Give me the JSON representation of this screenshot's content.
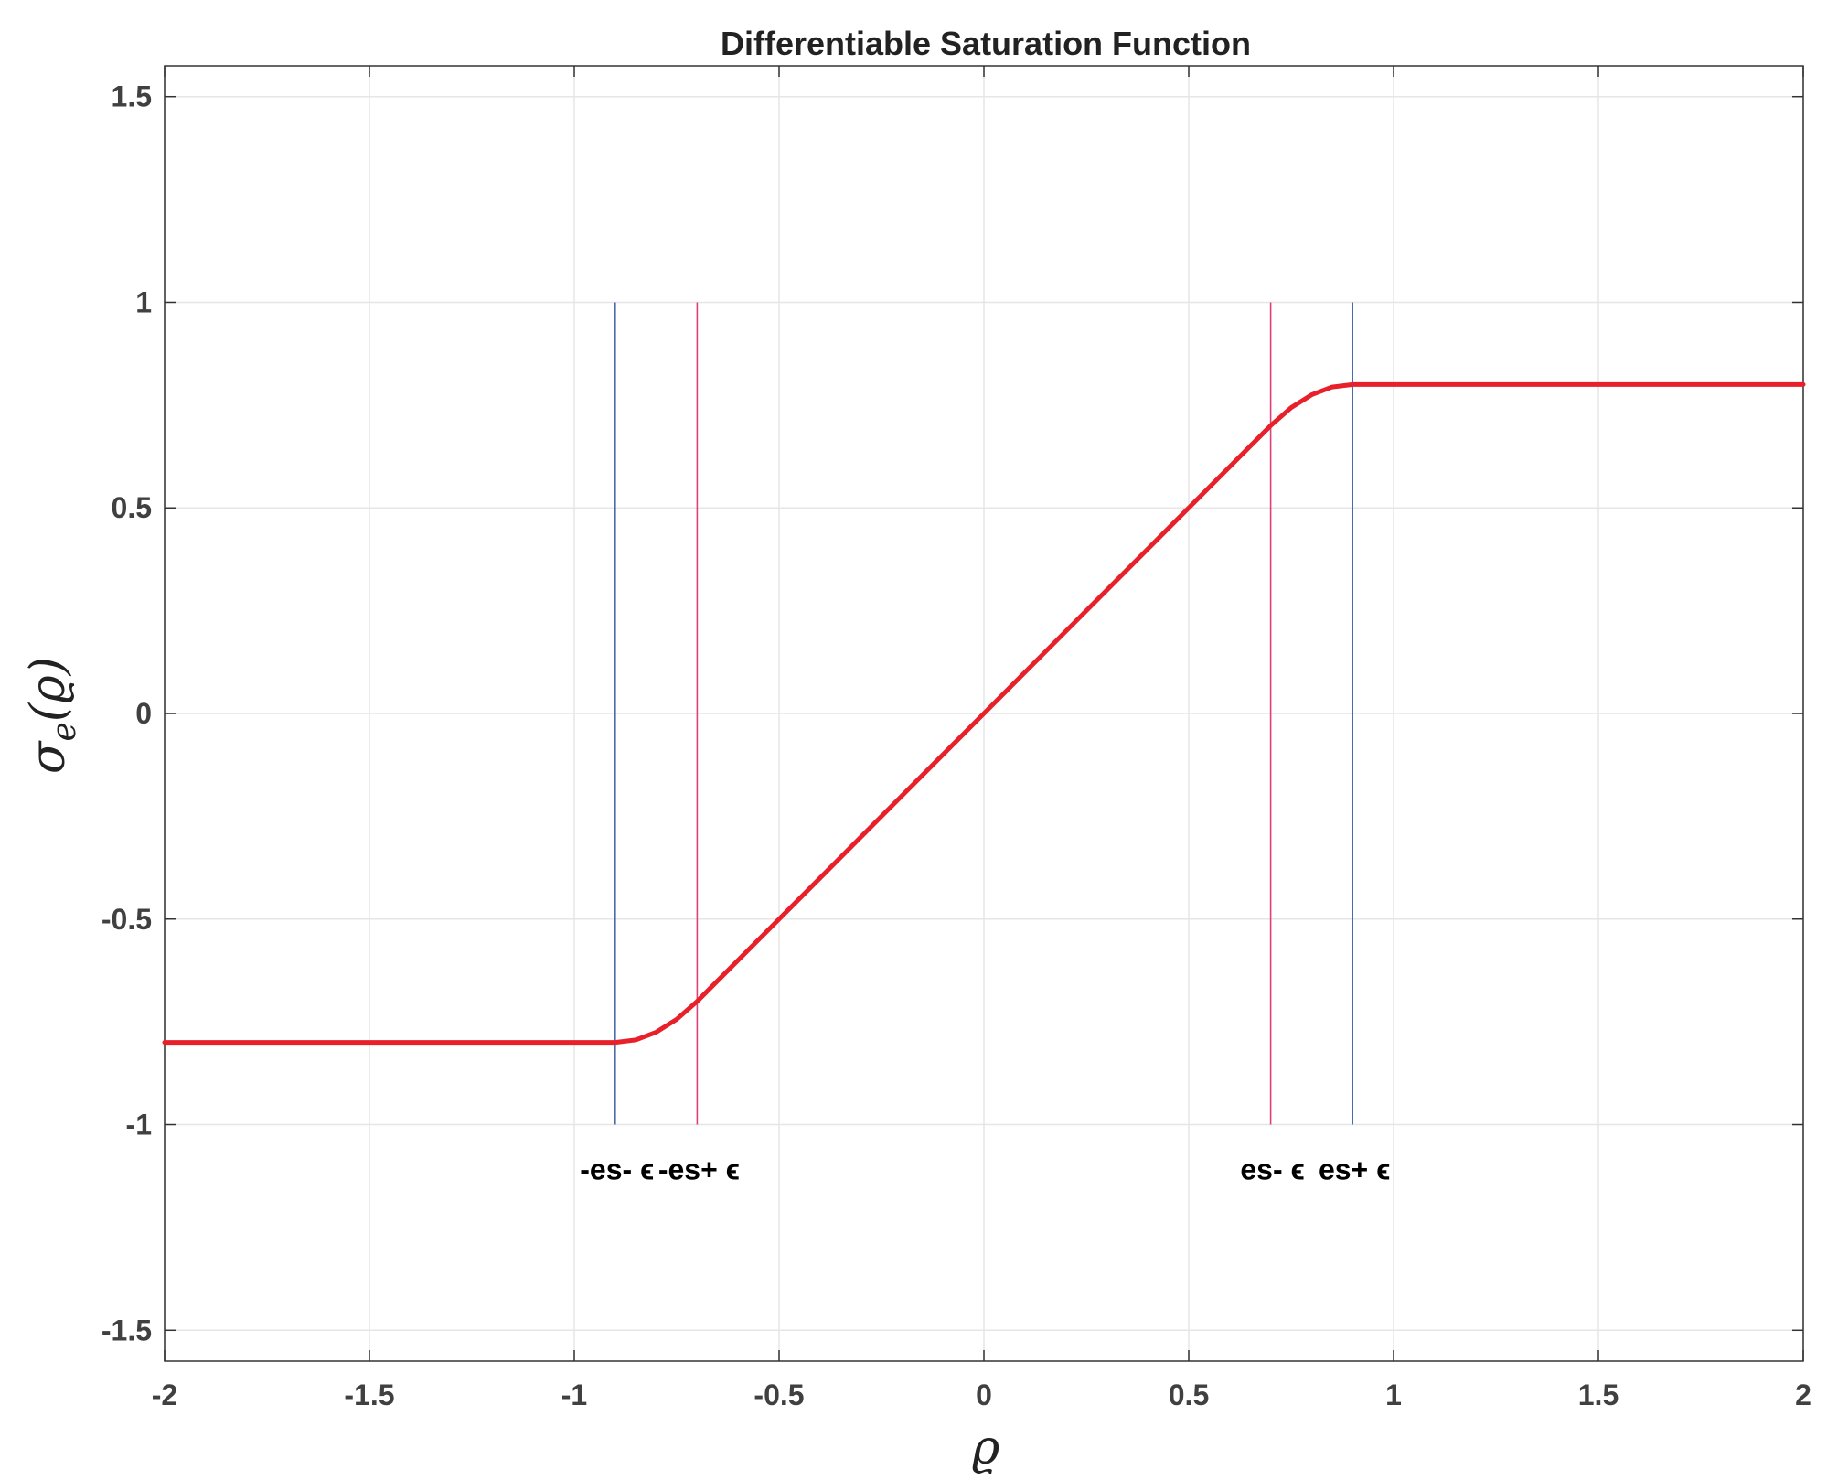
{
  "colors": {
    "curve": "#e8202a",
    "outer_markers": "#4a6aa8",
    "inner_markers": "#e0407a",
    "grid": "#e6e6e6",
    "axes": "#333333",
    "tick_text": "#404040"
  },
  "chart_data": {
    "type": "line",
    "title": "Differentiable Saturation Function",
    "xlabel": "ϱ",
    "ylabel": "σe(ϱ)",
    "xlim": [
      -2,
      2
    ],
    "ylim": [
      -1.575,
      1.575
    ],
    "xticks": [
      -2,
      -1.5,
      -1,
      -0.5,
      0,
      0.5,
      1,
      1.5,
      2
    ],
    "xtick_labels": [
      "-2",
      "-1.5",
      "-1",
      "-0.5",
      "0",
      "0.5",
      "1",
      "1.5",
      "2"
    ],
    "yticks": [
      -1.5,
      -1,
      -0.5,
      0,
      0.5,
      1,
      1.5
    ],
    "ytick_labels": [
      "-1.5",
      "-1",
      "-0.5",
      "0",
      "0.5",
      "1",
      "1.5"
    ],
    "grid": true,
    "series": [
      {
        "x": [
          -2,
          -0.9,
          -0.85,
          -0.8,
          -0.75,
          -0.7,
          0,
          0.7,
          0.75,
          0.8,
          0.85,
          0.9,
          2
        ],
        "y": [
          -0.8,
          -0.8,
          -0.794,
          -0.775,
          -0.744,
          -0.7,
          0,
          0.7,
          0.744,
          0.775,
          0.794,
          0.8,
          0.8
        ],
        "line_width": "thick"
      }
    ],
    "marker_lines": [
      {
        "x": -0.9,
        "y_range": [
          -1,
          1
        ],
        "color_key": "outer_markers",
        "label": "-es- ϵ"
      },
      {
        "x": -0.7,
        "y_range": [
          -1,
          1
        ],
        "color_key": "inner_markers",
        "label": "-es+ ϵ"
      },
      {
        "x": 0.7,
        "y_range": [
          -1,
          1
        ],
        "color_key": "inner_markers",
        "label": "es- ϵ"
      },
      {
        "x": 0.9,
        "y_range": [
          -1,
          1
        ],
        "color_key": "outer_markers",
        "label": "es+ ϵ"
      }
    ]
  }
}
